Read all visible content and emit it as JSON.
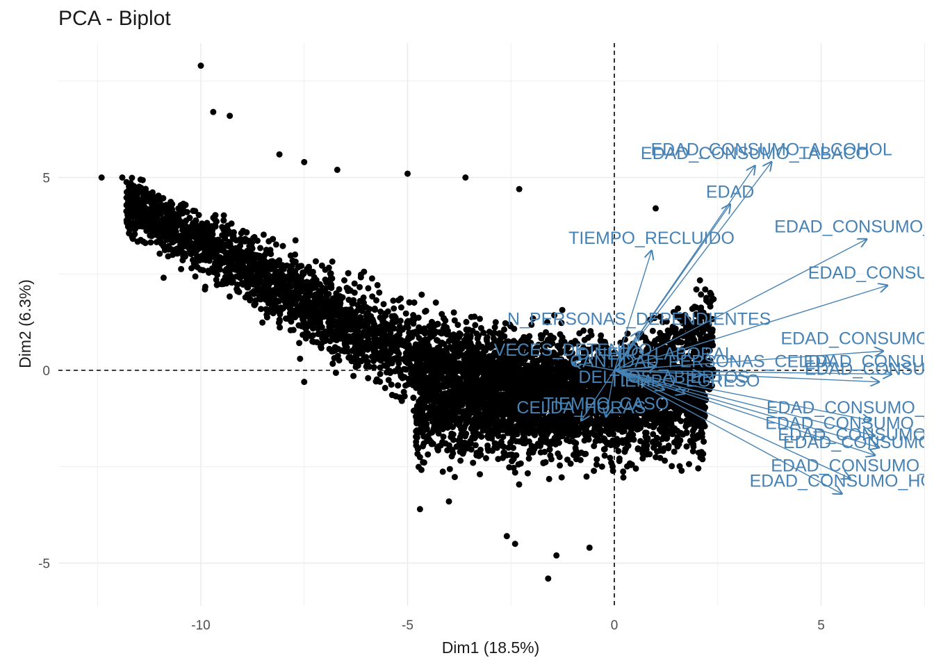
{
  "chart_data": {
    "type": "scatter",
    "title": "PCA - Biplot",
    "xlabel": "Dim1 (18.5%)",
    "ylabel": "Dim2 (6.3%)",
    "xlim": [
      -12.9,
      7.4
    ],
    "ylim": [
      -6.1,
      8.4
    ],
    "x_ticks": [
      -10,
      -5,
      0,
      5
    ],
    "x_tick_labels": [
      "-10",
      "-5",
      "0",
      "5"
    ],
    "y_ticks": [
      -5,
      0,
      5
    ],
    "y_tick_labels": [
      "-5",
      "0",
      "5"
    ],
    "grid": true,
    "legend": "none",
    "colors": {
      "points": "#000000",
      "arrows": "#4682B4",
      "grid": "#ebebeb",
      "reference": "#000000"
    },
    "reference_lines": {
      "x": 0,
      "y": 0,
      "style": "dashed"
    },
    "points_sample": [
      [
        -12.4,
        5.0
      ],
      [
        -11.9,
        5.0
      ],
      [
        -11.6,
        4.3
      ],
      [
        -10.0,
        7.9
      ],
      [
        -9.7,
        6.7
      ],
      [
        -9.3,
        6.6
      ],
      [
        -10.9,
        2.4
      ],
      [
        -9.9,
        2.1
      ],
      [
        -8.1,
        5.6
      ],
      [
        -7.5,
        5.4
      ],
      [
        -6.7,
        5.2
      ],
      [
        -5.0,
        5.1
      ],
      [
        -3.6,
        5.0
      ],
      [
        -2.3,
        4.7
      ],
      [
        -7.6,
        0.3
      ],
      [
        -7.5,
        -0.3
      ],
      [
        -4.7,
        -3.6
      ],
      [
        -4.0,
        -3.4
      ],
      [
        -2.6,
        -4.3
      ],
      [
        -1.6,
        -5.4
      ],
      [
        -0.6,
        -4.6
      ],
      [
        -1.4,
        -4.8
      ],
      [
        -2.4,
        -4.5
      ],
      [
        1.0,
        4.2
      ]
    ],
    "variables": [
      {
        "name": "EDAD_CONSUMO_TABACO",
        "x": 3.4,
        "y": 5.3
      },
      {
        "name": "EDAD_CONSUMO_ALCOHOL",
        "x": 3.8,
        "y": 5.4
      },
      {
        "name": "EDAD",
        "x": 2.8,
        "y": 4.3
      },
      {
        "name": "EDAD_CONSUMO_MA",
        "x": 6.1,
        "y": 3.4
      },
      {
        "name": "TIEMPO_RECLUIDO",
        "x": 0.9,
        "y": 3.1
      },
      {
        "name": "EDAD_CONSUMO_",
        "x": 6.6,
        "y": 2.2
      },
      {
        "name": "N_PERSONAS_DEPENDIENTES",
        "x": 0.6,
        "y": 1.0
      },
      {
        "name": "VECES_DETENIDO",
        "x": -1.0,
        "y": 0.2
      },
      {
        "name": "DINERO_LABORAL",
        "x": 1.0,
        "y": 0.1
      },
      {
        "name": "EDAD_CONSUMO_ANFE",
        "x": 6.5,
        "y": 0.5
      },
      {
        "name": "EDAD_CONSUMO_IN",
        "x": 6.7,
        "y": -0.1
      },
      {
        "name": "CANTIDAD_PERSONAS_CELDA",
        "x": 2.1,
        "y": -0.1
      },
      {
        "name": "EDAD_CONSUMO",
        "x": 6.4,
        "y": -0.3
      },
      {
        "name": "DELITOS_ABIERTOS",
        "x": 1.2,
        "y": -0.5
      },
      {
        "name": "TIEMPO_EGRESO",
        "x": 1.7,
        "y": -0.6
      },
      {
        "name": "TIEMPO_CASO",
        "x": -0.2,
        "y": -1.2
      },
      {
        "name": "CELDA_HORAS",
        "x": -0.8,
        "y": -1.3
      },
      {
        "name": "EDAD_CONSUMO_HERO",
        "x": 6.2,
        "y": -1.3
      },
      {
        "name": "EDAD_CONSUMO_TRANQ",
        "x": 6.3,
        "y": -1.7
      },
      {
        "name": "EDAD_CONSUMO_PAST",
        "x": 6.4,
        "y": -2.0
      },
      {
        "name": "EDAD_CONSUMO_CH",
        "x": 6.3,
        "y": -2.2
      },
      {
        "name": "EDAD_CONSUMO_",
        "x": 5.7,
        "y": -2.8
      },
      {
        "name": "EDAD_CONSUMO_HO",
        "x": 5.5,
        "y": -3.2
      }
    ]
  }
}
